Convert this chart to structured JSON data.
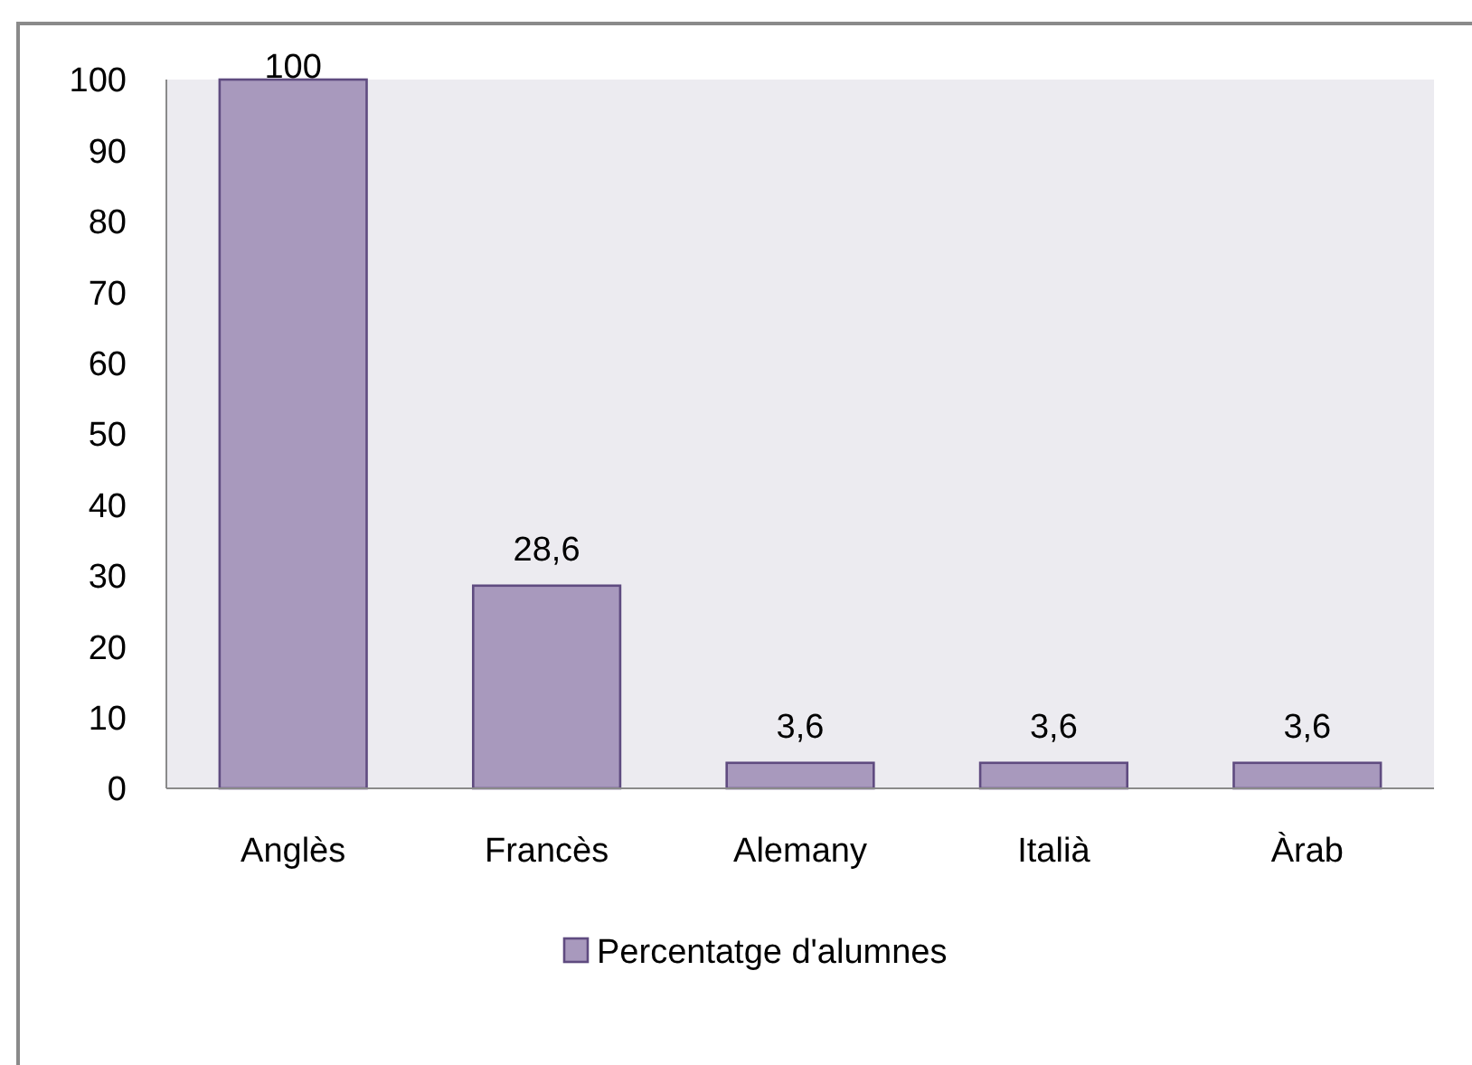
{
  "chart_data": {
    "type": "bar",
    "categories": [
      "Anglès",
      "Francès",
      "Alemany",
      "Italià",
      "Àrab"
    ],
    "series": [
      {
        "name": "Percentatge d'alumnes",
        "color": "#a899bd",
        "values": [
          100,
          28.6,
          3.6,
          3.6,
          3.6
        ],
        "value_labels": [
          "100",
          "28,6",
          "3,6",
          "3,6",
          "3,6"
        ]
      }
    ],
    "ylim": [
      0,
      100
    ],
    "yticks": [
      0,
      10,
      20,
      30,
      40,
      50,
      60,
      70,
      80,
      90,
      100
    ],
    "grid": false,
    "legend": "bottom"
  }
}
